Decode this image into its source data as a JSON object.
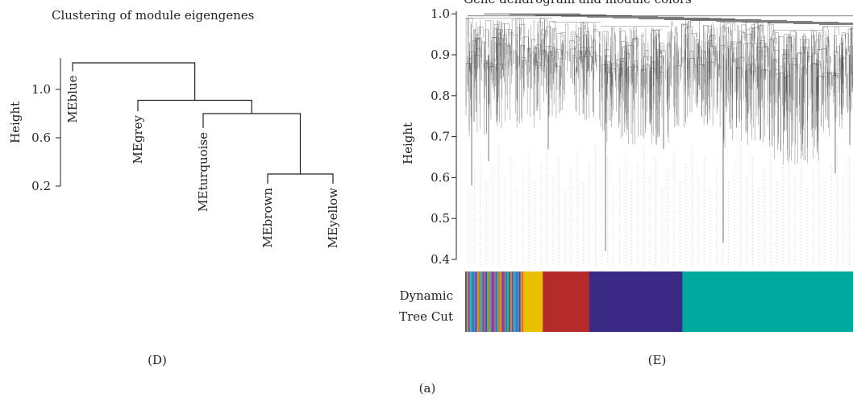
{
  "figure_label": "(a)",
  "chart_data": [
    {
      "type": "dendrogram",
      "panel_label": "(D)",
      "title": "Clustering of module eigengenes",
      "ylabel": "Height",
      "yticks": [
        "0.2",
        "0.6",
        "1.0"
      ],
      "ylim": [
        0.1,
        1.3
      ],
      "leaves": [
        "MEblue",
        "MEgrey",
        "MEturquoise",
        "MEbrown",
        "MEyellow"
      ],
      "merges": [
        {
          "left": "MEbrown",
          "right": "MEyellow",
          "height": 0.3
        },
        {
          "left": "MEturquoise",
          "right": "MEbrown+MEyellow",
          "height": 0.8
        },
        {
          "left": "MEgrey",
          "right": "MEturquoise+MEbrown+MEyellow",
          "height": 0.91
        },
        {
          "left": "MEblue",
          "right": "MEgrey+MEturquoise+MEbrown+MEyellow",
          "height": 1.22
        }
      ],
      "leaf_heights": {
        "MEblue": 1.15,
        "MEgrey": 0.82,
        "MEturquoise": 0.68,
        "MEbrown": 0.22,
        "MEyellow": 0.22
      }
    },
    {
      "type": "dendrogram",
      "panel_label": "(E)",
      "title": "Gene dendrogram and module colors",
      "ylabel": "Height",
      "yticks": [
        "0.4",
        "0.5",
        "0.6",
        "0.7",
        "0.8",
        "0.9",
        "1.0"
      ],
      "ylim": [
        0.4,
        1.0
      ],
      "color_bar_label": [
        "Dynamic",
        "Tree Cut"
      ],
      "module_colors": [
        {
          "color": "#e8c200",
          "share": 0.05
        },
        {
          "color": "#b52a2a",
          "share": 0.12
        },
        {
          "color": "#3a2a86",
          "share": 0.24
        },
        {
          "color": "#00a99d",
          "share": 0.44
        }
      ],
      "mixed_segment_share": 0.15,
      "mixed_palette": [
        "#3a4fb5",
        "#2bb5c8",
        "#7a7ac8",
        "#e86a2a",
        "#c23a5a",
        "#5ab55a",
        "#8a3ab5",
        "#2a7ac8",
        "#d4a020",
        "#3aa0a0"
      ]
    }
  ]
}
